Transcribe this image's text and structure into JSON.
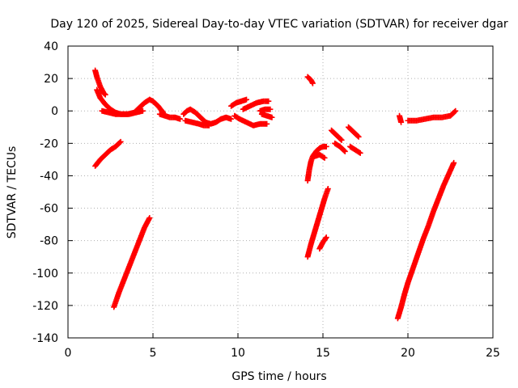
{
  "chart_data": {
    "type": "scatter",
    "title": "Day 120 of 2025, Sidereal Day-to-day VTEC variation (SDTVAR) for receiver dgar",
    "xlabel": "GPS time / hours",
    "ylabel": "SDTVAR / TECUs",
    "xlim": [
      0,
      25
    ],
    "ylim": [
      -140,
      40
    ],
    "xticks": [
      0,
      5,
      10,
      15,
      20,
      25
    ],
    "yticks": [
      -140,
      -120,
      -100,
      -80,
      -60,
      -40,
      -20,
      0,
      20,
      40
    ],
    "grid": true,
    "legend": "none",
    "marker": "+",
    "color": "#ff0000",
    "series": [
      {
        "x": [
          1.6,
          1.7,
          1.8,
          1.9,
          2.0,
          2.1,
          2.2
        ],
        "y": [
          25,
          21,
          18,
          15,
          13,
          11,
          10
        ]
      },
      {
        "x": [
          1.7,
          1.9,
          2.2,
          2.5,
          2.8,
          3.1,
          3.5,
          3.9,
          4.2,
          4.5,
          4.8,
          5.0,
          5.3,
          5.6
        ],
        "y": [
          13,
          8,
          4,
          1,
          -1,
          -2,
          -2,
          -1,
          2,
          5,
          7,
          6,
          3,
          -1
        ]
      },
      {
        "x": [
          2.0,
          2.4,
          2.8,
          3.2,
          3.6,
          4.0,
          4.4
        ],
        "y": [
          0,
          -1,
          -2,
          -2,
          -2,
          -1,
          0
        ]
      },
      {
        "x": [
          5.4,
          5.7,
          6.0,
          6.3,
          6.6
        ],
        "y": [
          -2,
          -3,
          -4,
          -4,
          -5
        ]
      },
      {
        "x": [
          6.8,
          7.0,
          7.2,
          7.5,
          7.8,
          8.1,
          8.4,
          8.7,
          9.0,
          9.3,
          9.6
        ],
        "y": [
          -2,
          0,
          1,
          -1,
          -4,
          -7,
          -8,
          -7,
          -5,
          -4,
          -5
        ]
      },
      {
        "x": [
          6.9,
          7.3,
          7.7,
          8.0,
          8.3
        ],
        "y": [
          -6,
          -7,
          -8,
          -9,
          -9
        ]
      },
      {
        "x": [
          9.6,
          9.9,
          10.2,
          10.5
        ],
        "y": [
          3,
          5,
          6,
          7
        ]
      },
      {
        "x": [
          9.8,
          10.1,
          10.5,
          10.9,
          11.3,
          11.7
        ],
        "y": [
          -3,
          -5,
          -7,
          -9,
          -8,
          -8
        ]
      },
      {
        "x": [
          10.3,
          10.7,
          11.1,
          11.5,
          11.8
        ],
        "y": [
          1,
          3,
          5,
          6,
          6
        ]
      },
      {
        "x": [
          11.4,
          11.7,
          12.0
        ],
        "y": [
          -2,
          -3,
          -4
        ]
      },
      {
        "x": [
          11.3,
          11.6,
          11.9
        ],
        "y": [
          0,
          1,
          1
        ]
      },
      {
        "x": [
          1.6,
          1.9,
          2.2,
          2.5,
          2.8,
          3.1
        ],
        "y": [
          -34,
          -30,
          -27,
          -24,
          -22,
          -19
        ]
      },
      {
        "x": [
          2.7,
          3.0,
          3.3,
          3.6,
          3.9,
          4.2,
          4.5,
          4.8
        ],
        "y": [
          -121,
          -112,
          -104,
          -96,
          -88,
          -80,
          -72,
          -66
        ]
      },
      {
        "x": [
          14.1,
          14.2,
          14.3,
          14.4
        ],
        "y": [
          21,
          20,
          19,
          17
        ]
      },
      {
        "x": [
          14.1,
          14.2,
          14.3,
          14.4,
          14.6,
          14.8,
          15.0,
          15.2
        ],
        "y": [
          -43,
          -36,
          -31,
          -28,
          -25,
          -23,
          -22,
          -22
        ]
      },
      {
        "x": [
          14.5,
          14.8,
          15.1
        ],
        "y": [
          -28,
          -27,
          -29
        ]
      },
      {
        "x": [
          14.1,
          14.3,
          14.5,
          14.7,
          14.9,
          15.1,
          15.3
        ],
        "y": [
          -90,
          -82,
          -75,
          -68,
          -61,
          -54,
          -48
        ]
      },
      {
        "x": [
          14.8,
          15.0,
          15.2
        ],
        "y": [
          -85,
          -81,
          -78
        ]
      },
      {
        "x": [
          15.5,
          15.8,
          16.1
        ],
        "y": [
          -12,
          -15,
          -18
        ]
      },
      {
        "x": [
          15.7,
          16.0,
          16.3
        ],
        "y": [
          -20,
          -22,
          -25
        ]
      },
      {
        "x": [
          16.5,
          16.8,
          17.1
        ],
        "y": [
          -10,
          -13,
          -16
        ]
      },
      {
        "x": [
          16.6,
          16.9,
          17.2
        ],
        "y": [
          -22,
          -24,
          -26
        ]
      },
      {
        "x": [
          19.4,
          19.6,
          19.8,
          20.0,
          20.3,
          20.6,
          20.9,
          21.2,
          21.5,
          21.8,
          22.1,
          22.4,
          22.7
        ],
        "y": [
          -128,
          -121,
          -113,
          -106,
          -97,
          -88,
          -79,
          -71,
          -62,
          -54,
          -46,
          -39,
          -32
        ]
      },
      {
        "x": [
          19.5,
          19.6
        ],
        "y": [
          -3,
          -7
        ]
      },
      {
        "x": [
          20.0,
          20.5,
          21.0,
          21.5,
          22.0,
          22.5,
          22.8
        ],
        "y": [
          -6,
          -6,
          -5,
          -4,
          -4,
          -3,
          0
        ]
      }
    ]
  }
}
